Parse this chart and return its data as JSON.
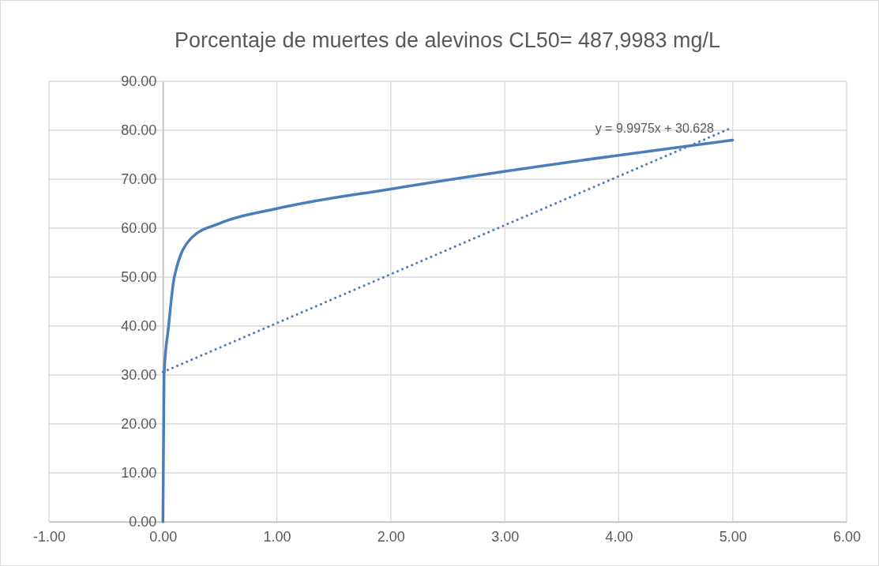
{
  "chart_data": {
    "type": "line",
    "title": "Porcentaje de muertes de alevinos CL50= 487,9983 mg/L",
    "series": [
      {
        "color": "#4a7ebb",
        "x": [
          0,
          0.01,
          0.05,
          0.1,
          0.25,
          0.5,
          1,
          2,
          5
        ],
        "values": [
          0,
          30,
          40,
          50,
          58,
          61,
          64,
          68,
          78
        ],
        "line_style": "solid"
      },
      {
        "color": "#4a7ebb",
        "x": [
          0,
          5
        ],
        "values": [
          30.6,
          80.6
        ],
        "line_style": "dotted"
      }
    ],
    "xlim": [
      -1,
      6
    ],
    "xticks": [
      {
        "value": -1,
        "label": "-1.00"
      },
      {
        "value": 0,
        "label": "0.00"
      },
      {
        "value": 1,
        "label": "1.00"
      },
      {
        "value": 2,
        "label": "2.00"
      },
      {
        "value": 3,
        "label": "3.00"
      },
      {
        "value": 4,
        "label": "4.00"
      },
      {
        "value": 5,
        "label": "5.00"
      },
      {
        "value": 6,
        "label": "6.00"
      }
    ],
    "ylim": [
      0,
      90
    ],
    "yticks": [
      {
        "value": 0,
        "label": "0.00"
      },
      {
        "value": 10,
        "label": "10.00"
      },
      {
        "value": 20,
        "label": "20.00"
      },
      {
        "value": 30,
        "label": "30.00"
      },
      {
        "value": 40,
        "label": "40.00"
      },
      {
        "value": 50,
        "label": "50.00"
      },
      {
        "value": 60,
        "label": "60.00"
      },
      {
        "value": 70,
        "label": "70.00"
      },
      {
        "value": 80,
        "label": "80.00"
      },
      {
        "value": 90,
        "label": "90.00"
      }
    ],
    "grid": true,
    "marker": "none",
    "annotations": [
      "y = 9.9975x + 30.628"
    ]
  }
}
